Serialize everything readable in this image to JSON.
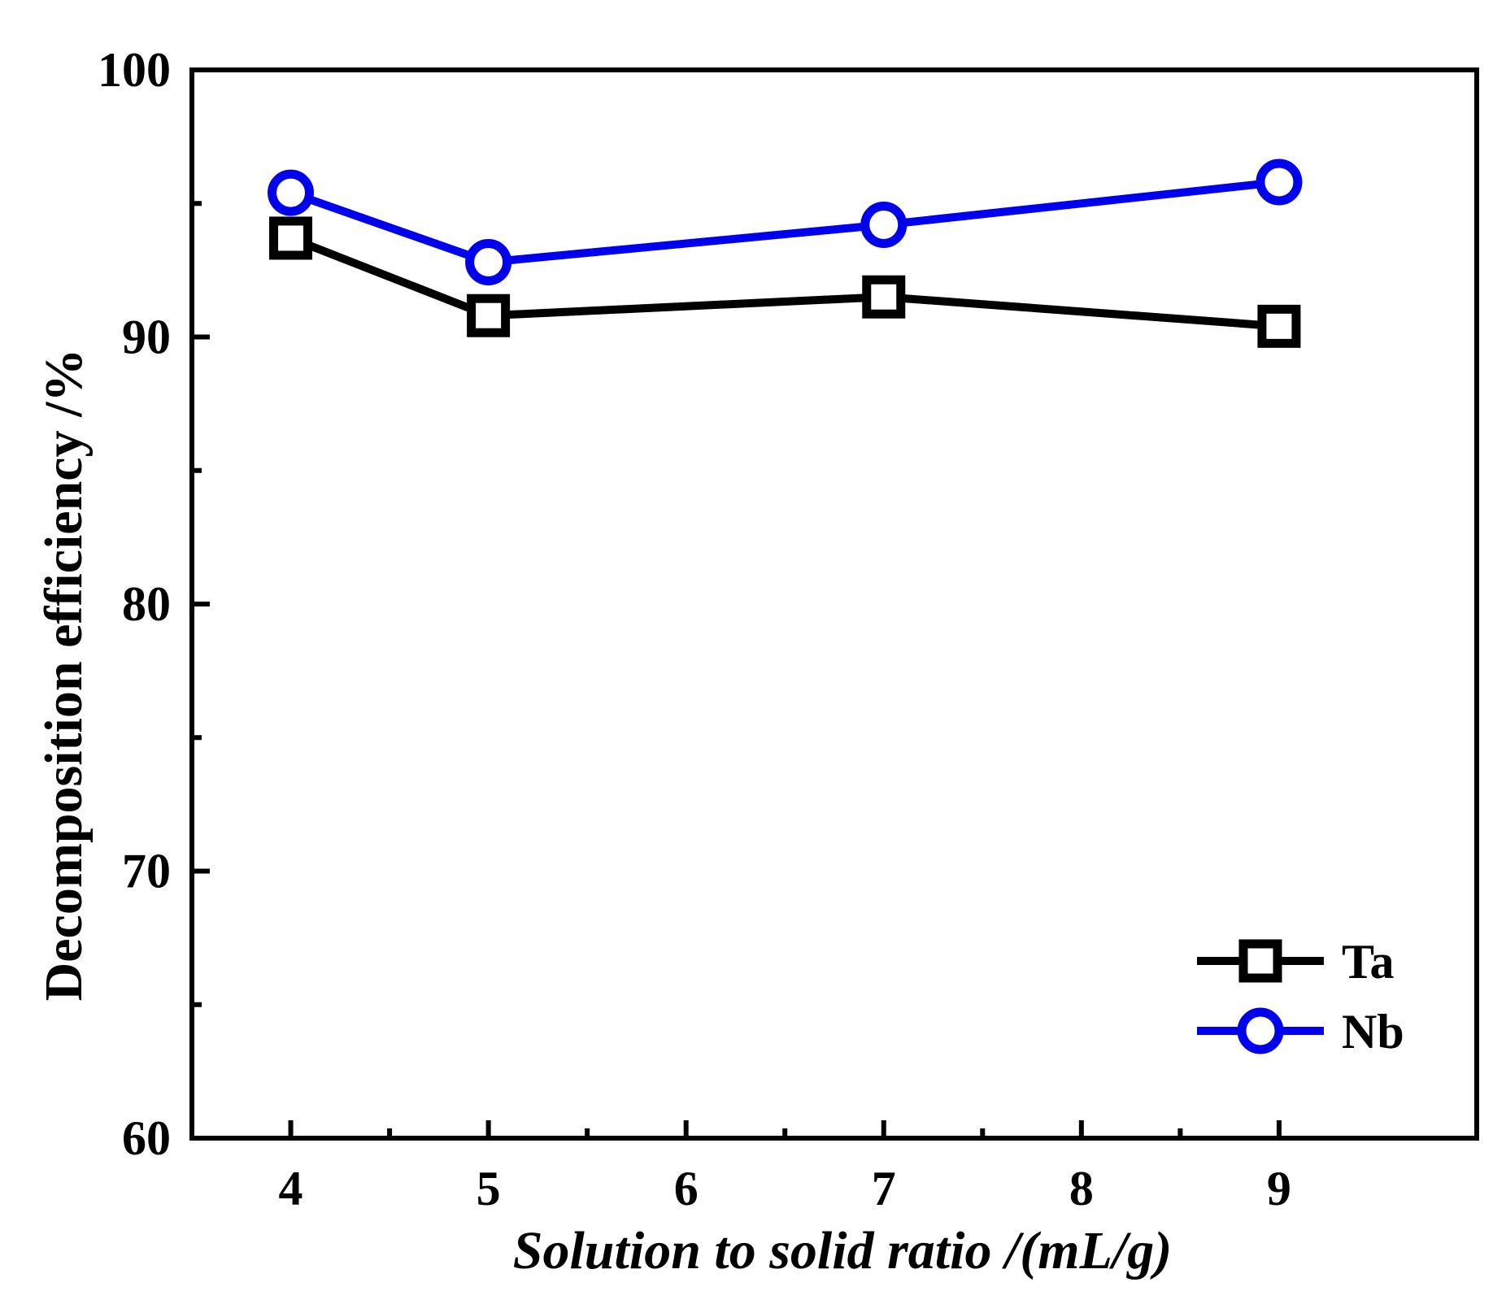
{
  "chart_data": {
    "type": "line",
    "title": "",
    "xlabel": "Solution to solid ratio /(mL/g)",
    "ylabel": "Decomposition efficiency /%",
    "xlim": [
      3.5,
      10.0
    ],
    "ylim": [
      60,
      100
    ],
    "x_major_ticks": [
      4,
      5,
      6,
      7,
      8,
      9
    ],
    "x_minor_ticks": [
      4.5,
      5.5,
      6.5,
      7.5,
      8.5
    ],
    "y_major_ticks": [
      60,
      70,
      80,
      90,
      100
    ],
    "y_minor_ticks": [
      65,
      75,
      85,
      95
    ],
    "legend_position": "bottom-right",
    "series": [
      {
        "name": "Ta",
        "color": "#000000",
        "marker": "square",
        "x": [
          4,
          5,
          7,
          9
        ],
        "y": [
          93.7,
          90.8,
          91.5,
          90.4
        ]
      },
      {
        "name": "Nb",
        "color": "#0000ee",
        "marker": "circle",
        "x": [
          4,
          5,
          7,
          9
        ],
        "y": [
          95.4,
          92.8,
          94.2,
          95.8
        ]
      }
    ]
  }
}
